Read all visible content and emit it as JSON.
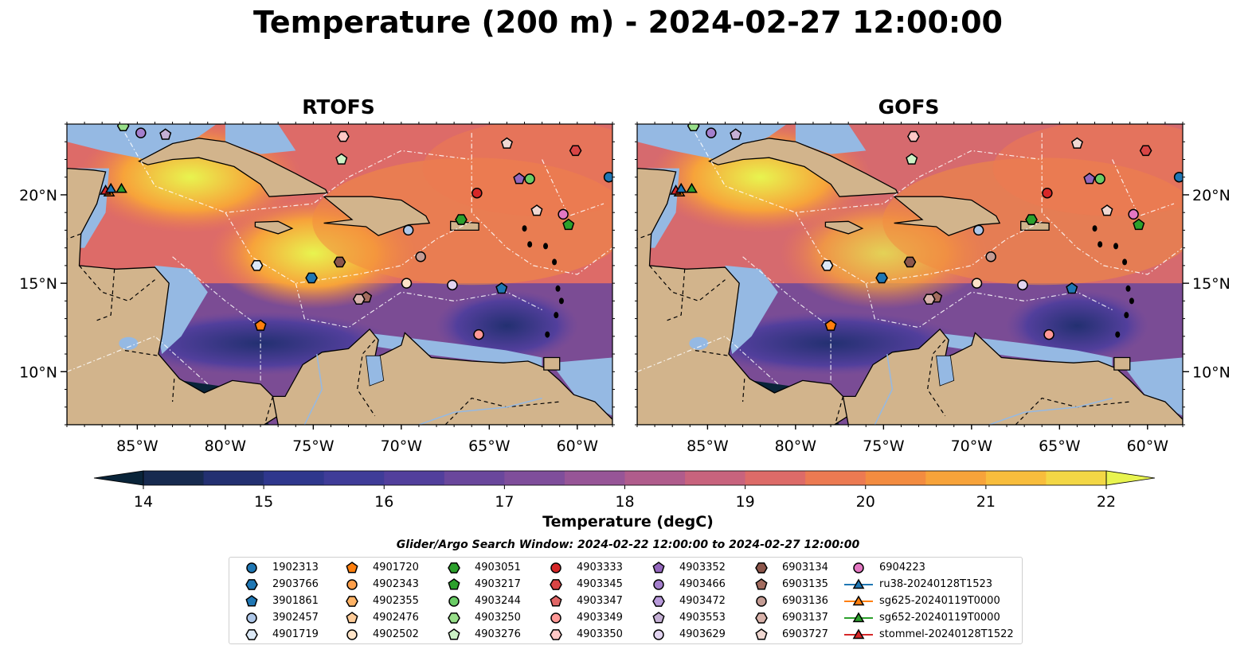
{
  "title": "Temperature (200 m) - 2024-02-27 12:00:00",
  "panels": [
    {
      "title": "RTOFS"
    },
    {
      "title": "GOFS"
    }
  ],
  "axes": {
    "lon_ticks": [
      "85°W",
      "80°W",
      "75°W",
      "70°W",
      "65°W",
      "60°W"
    ],
    "lat_ticks": [
      "20°N",
      "15°N",
      "10°N"
    ]
  },
  "colorbar": {
    "label": "Temperature (degC)",
    "ticks": [
      "14",
      "15",
      "16",
      "17",
      "18",
      "19",
      "20",
      "21",
      "22"
    ],
    "colors": [
      "#0a2439",
      "#172a4f",
      "#233071",
      "#2f378d",
      "#3f3c98",
      "#523f9c",
      "#6a479c",
      "#7f4e9b",
      "#975597",
      "#b05c8c",
      "#c8637d",
      "#dd6b68",
      "#ec7a52",
      "#f38c40",
      "#f7a33a",
      "#f8bd3c",
      "#f3d745",
      "#e8f44f"
    ]
  },
  "legend": {
    "title": "Glider/Argo Search Window: 2024-02-22 12:00:00 to 2024-02-27 12:00:00",
    "columns": [
      [
        {
          "label": "1902313",
          "marker": "circle",
          "color": "#1f77b4"
        },
        {
          "label": "2903766",
          "marker": "hexagon",
          "color": "#1f77b4"
        },
        {
          "label": "3901861",
          "marker": "pentagon",
          "color": "#1f77b4"
        },
        {
          "label": "3902457",
          "marker": "circle",
          "color": "#aec7e8"
        },
        {
          "label": "4901719",
          "marker": "hexagon",
          "color": "#dce9f6"
        }
      ],
      [
        {
          "label": "4901720",
          "marker": "pentagon",
          "color": "#ff7f0e"
        },
        {
          "label": "4902343",
          "marker": "circle",
          "color": "#ff9f4a"
        },
        {
          "label": "4902355",
          "marker": "hexagon",
          "color": "#ffb366"
        },
        {
          "label": "4902476",
          "marker": "pentagon",
          "color": "#ffcc99"
        },
        {
          "label": "4902502",
          "marker": "circle",
          "color": "#ffe4c8"
        }
      ],
      [
        {
          "label": "4903051",
          "marker": "hexagon",
          "color": "#2ca02c"
        },
        {
          "label": "4903217",
          "marker": "pentagon",
          "color": "#2ca02c"
        },
        {
          "label": "4903244",
          "marker": "circle",
          "color": "#6acc65"
        },
        {
          "label": "4903250",
          "marker": "hexagon",
          "color": "#98df8a"
        },
        {
          "label": "4903276",
          "marker": "pentagon",
          "color": "#ccf2c6"
        }
      ],
      [
        {
          "label": "4903333",
          "marker": "circle",
          "color": "#d62728"
        },
        {
          "label": "4903345",
          "marker": "hexagon",
          "color": "#d94545"
        },
        {
          "label": "4903347",
          "marker": "pentagon",
          "color": "#e06666"
        },
        {
          "label": "4903349",
          "marker": "circle",
          "color": "#ff9896"
        },
        {
          "label": "4903350",
          "marker": "hexagon",
          "color": "#ffc8c6"
        }
      ],
      [
        {
          "label": "4903352",
          "marker": "pentagon",
          "color": "#9467bd"
        },
        {
          "label": "4903466",
          "marker": "circle",
          "color": "#a47fcc"
        },
        {
          "label": "4903472",
          "marker": "hexagon",
          "color": "#b89ada"
        },
        {
          "label": "4903553",
          "marker": "pentagon",
          "color": "#c5b0d5"
        },
        {
          "label": "4903629",
          "marker": "circle",
          "color": "#e2d4f0"
        }
      ],
      [
        {
          "label": "6903134",
          "marker": "hexagon",
          "color": "#8c564b"
        },
        {
          "label": "6903135",
          "marker": "pentagon",
          "color": "#a36c5f"
        },
        {
          "label": "6903136",
          "marker": "circle",
          "color": "#c49c94"
        },
        {
          "label": "6903137",
          "marker": "hexagon",
          "color": "#d9b3ab"
        },
        {
          "label": "6903727",
          "marker": "pentagon",
          "color": "#f0d8d2"
        }
      ],
      [
        {
          "label": "6904223",
          "marker": "circle",
          "color": "#e377c2"
        },
        {
          "label": "ru38-20240128T1523",
          "marker": "line-triangle",
          "color": "#1f77b4"
        },
        {
          "label": "sg625-20240119T0000",
          "marker": "line-triangle",
          "color": "#ff7f0e"
        },
        {
          "label": "sg652-20240119T0000",
          "marker": "line-triangle",
          "color": "#2ca02c"
        },
        {
          "label": "stommel-20240128T1522",
          "marker": "line-triangle",
          "color": "#d62728"
        }
      ]
    ]
  },
  "map_colors": {
    "land": "#d2b48c",
    "shallow": "#95b9e3",
    "deep_cold": "#0a2439"
  },
  "stations": [
    {
      "id": "1902313",
      "lon": -58.2,
      "lat": 21.0
    },
    {
      "id": "4903333",
      "lon": -65.7,
      "lat": 20.1
    },
    {
      "id": "4903244",
      "lon": -62.7,
      "lat": 20.9
    },
    {
      "id": "4903352",
      "lon": -63.3,
      "lat": 20.9
    },
    {
      "id": "4903051",
      "lon": -66.6,
      "lat": 18.6
    },
    {
      "id": "4903217",
      "lon": -60.5,
      "lat": 18.3
    },
    {
      "id": "6904223",
      "lon": -60.8,
      "lat": 18.9
    },
    {
      "id": "6903727",
      "lon": -62.3,
      "lat": 19.1
    },
    {
      "id": "3902457",
      "lon": -69.6,
      "lat": 18.0
    },
    {
      "id": "6903136",
      "lon": -68.9,
      "lat": 16.5
    },
    {
      "id": "6903134",
      "lon": -73.5,
      "lat": 16.2
    },
    {
      "id": "4903629",
      "lon": -67.1,
      "lat": 14.9
    },
    {
      "id": "4902502",
      "lon": -69.7,
      "lat": 15.0
    },
    {
      "id": "3901861",
      "lon": -64.3,
      "lat": 14.7
    },
    {
      "id": "2903766",
      "lon": -75.1,
      "lat": 15.3
    },
    {
      "id": "4901719",
      "lon": -78.2,
      "lat": 16.0
    },
    {
      "id": "6903135",
      "lon": -72.0,
      "lat": 14.2
    },
    {
      "id": "6903137",
      "lon": -72.4,
      "lat": 14.1
    },
    {
      "id": "4903349",
      "lon": -65.6,
      "lat": 12.1
    },
    {
      "id": "4901720",
      "lon": -78.0,
      "lat": 12.6
    },
    {
      "id": "6903727b",
      "lon": -64.0,
      "lat": 22.9
    },
    {
      "id": "4903350",
      "lon": -73.3,
      "lat": 23.3
    },
    {
      "id": "4903276",
      "lon": -73.4,
      "lat": 22.0
    },
    {
      "id": "4903345",
      "lon": -60.1,
      "lat": 22.5
    },
    {
      "id": "4903553",
      "lon": -83.4,
      "lat": 23.4
    },
    {
      "id": "4903466",
      "lon": -84.8,
      "lat": 23.5
    },
    {
      "id": "4903250",
      "lon": -85.8,
      "lat": 23.9
    },
    {
      "id": "sg652",
      "lon": -85.9,
      "lat": 20.3
    },
    {
      "id": "sg625",
      "lon": -86.6,
      "lat": 20.1
    },
    {
      "id": "stommel",
      "lon": -86.8,
      "lat": 20.2
    },
    {
      "id": "ru38",
      "lon": -86.5,
      "lat": 20.3
    }
  ]
}
